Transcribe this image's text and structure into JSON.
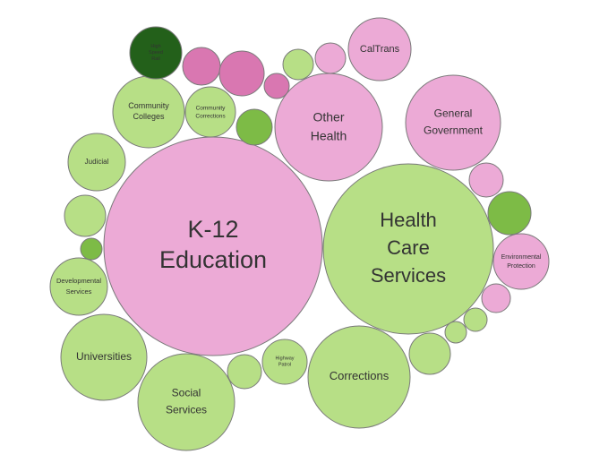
{
  "colors": {
    "pink": "#ecaad6",
    "light_green": "#b7df86",
    "mid_green": "#7dbb46",
    "magenta": "#d977b1",
    "dark_green": "#23601a",
    "outline": "#7a7a7a",
    "text": "#333333"
  },
  "chart_data": {
    "type": "bubble",
    "title": "",
    "bubbles": [
      {
        "label": [
          "K-12",
          "Education"
        ],
        "color": "pink"
      },
      {
        "label": [
          "Health",
          "Care",
          "Services"
        ],
        "color": "light_green"
      },
      {
        "label": [
          "Other",
          "Health"
        ],
        "color": "pink"
      },
      {
        "label": [
          "Corrections"
        ],
        "color": "light_green"
      },
      {
        "label": [
          "General",
          "Government"
        ],
        "color": "pink"
      },
      {
        "label": [
          "CalTrans"
        ],
        "color": "pink"
      },
      {
        "label": [
          "Universities"
        ],
        "color": "light_green"
      },
      {
        "label": [
          "Social",
          "Services"
        ],
        "color": "light_green"
      },
      {
        "label": [
          "Community",
          "Colleges"
        ],
        "color": "light_green"
      },
      {
        "label": [
          "Judicial"
        ],
        "color": "light_green"
      },
      {
        "label": [
          "Developmental",
          "Services"
        ],
        "color": "light_green"
      },
      {
        "label": [
          "Environmental",
          "Protection"
        ],
        "color": "pink"
      },
      {
        "label": [
          "Community",
          "Corrections"
        ],
        "color": "light_green"
      },
      {
        "label": [
          "High",
          "Speed",
          "Rail"
        ],
        "color": "dark_green"
      },
      {
        "label": [
          "Highway",
          "Patrol"
        ],
        "color": "light_green"
      },
      {
        "label": [],
        "color": "magenta"
      },
      {
        "label": [],
        "color": "magenta"
      },
      {
        "label": [],
        "color": "magenta"
      },
      {
        "label": [],
        "color": "light_green"
      },
      {
        "label": [],
        "color": "pink"
      },
      {
        "label": [],
        "color": "mid_green"
      },
      {
        "label": [],
        "color": "light_green"
      },
      {
        "label": [],
        "color": "mid_green"
      },
      {
        "label": [],
        "color": "pink"
      },
      {
        "label": [],
        "color": "mid_green"
      },
      {
        "label": [],
        "color": "pink"
      },
      {
        "label": [],
        "color": "light_green"
      },
      {
        "label": [],
        "color": "light_green"
      },
      {
        "label": [],
        "color": "light_green"
      },
      {
        "label": [],
        "color": "light_green"
      }
    ]
  }
}
